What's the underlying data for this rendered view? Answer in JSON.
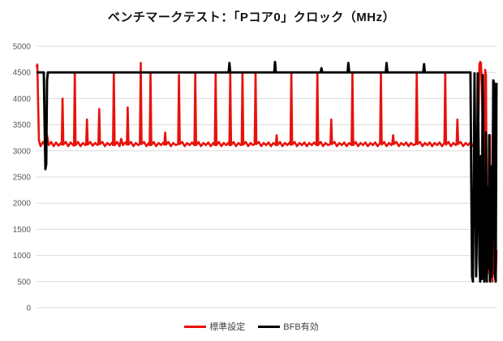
{
  "chart_data": {
    "type": "line",
    "title": "ベンチマークテスト：「Pコア0」クロック（MHz）",
    "xlabel": "",
    "ylabel": "",
    "x_axis_tick_labels": "none",
    "xlim": [
      0,
      565
    ],
    "ylim": [
      0,
      5000
    ],
    "yticks": [
      0,
      500,
      1000,
      1500,
      2000,
      2500,
      3000,
      3500,
      4000,
      4500,
      5000
    ],
    "grid": "horizontal",
    "gridline_color": "#d9d9d9",
    "tick_label_color": "#595959",
    "background_color": "#ffffff",
    "legend": {
      "position": "bottom-center",
      "entries": [
        {
          "label": "標準設定",
          "color": "#e8120c"
        },
        {
          "label": "BFB有効",
          "color": "#000000"
        }
      ]
    },
    "series": [
      {
        "name": "標準設定",
        "color": "#e8120c",
        "unit": "MHz",
        "points": [
          [
            0,
            4600
          ],
          [
            1,
            4650
          ],
          [
            2,
            3900
          ],
          [
            3,
            3200
          ],
          [
            5,
            3090
          ],
          [
            8,
            3170
          ],
          [
            11,
            3100
          ],
          [
            13,
            3300
          ],
          [
            15,
            3110
          ],
          [
            18,
            3170
          ],
          [
            21,
            3090
          ],
          [
            24,
            3160
          ],
          [
            27,
            3100
          ],
          [
            30,
            3150
          ],
          [
            31,
            3120
          ],
          [
            32,
            4000
          ],
          [
            33,
            3120
          ],
          [
            36,
            3170
          ],
          [
            39,
            3090
          ],
          [
            42,
            3160
          ],
          [
            45,
            3110
          ],
          [
            46,
            3100
          ],
          [
            47,
            4500
          ],
          [
            48,
            3110
          ],
          [
            51,
            3170
          ],
          [
            54,
            3090
          ],
          [
            57,
            3150
          ],
          [
            60,
            3110
          ],
          [
            61,
            3120
          ],
          [
            62,
            3600
          ],
          [
            63,
            3120
          ],
          [
            66,
            3170
          ],
          [
            69,
            3100
          ],
          [
            72,
            3150
          ],
          [
            75,
            3110
          ],
          [
            76,
            3130
          ],
          [
            77,
            3800
          ],
          [
            78,
            3130
          ],
          [
            81,
            3170
          ],
          [
            84,
            3090
          ],
          [
            87,
            3150
          ],
          [
            90,
            3110
          ],
          [
            93,
            3160
          ],
          [
            94,
            3110
          ],
          [
            95,
            4500
          ],
          [
            96,
            3110
          ],
          [
            99,
            3170
          ],
          [
            102,
            3090
          ],
          [
            104,
            3230
          ],
          [
            106,
            3110
          ],
          [
            109,
            3160
          ],
          [
            111,
            3120
          ],
          [
            112,
            3830
          ],
          [
            113,
            3120
          ],
          [
            116,
            3170
          ],
          [
            119,
            3090
          ],
          [
            122,
            3150
          ],
          [
            125,
            3110
          ],
          [
            127,
            3130
          ],
          [
            128,
            4680
          ],
          [
            129,
            3130
          ],
          [
            132,
            3170
          ],
          [
            135,
            3090
          ],
          [
            138,
            3150
          ],
          [
            139,
            3110
          ],
          [
            140,
            4500
          ],
          [
            141,
            3110
          ],
          [
            144,
            3170
          ],
          [
            147,
            3090
          ],
          [
            150,
            3150
          ],
          [
            153,
            3110
          ],
          [
            156,
            3160
          ],
          [
            157,
            3120
          ],
          [
            158,
            3350
          ],
          [
            159,
            3120
          ],
          [
            162,
            3170
          ],
          [
            165,
            3090
          ],
          [
            168,
            3150
          ],
          [
            171,
            3110
          ],
          [
            174,
            3130
          ],
          [
            175,
            4450
          ],
          [
            176,
            3130
          ],
          [
            179,
            3170
          ],
          [
            182,
            3090
          ],
          [
            185,
            3150
          ],
          [
            188,
            3110
          ],
          [
            191,
            3160
          ],
          [
            194,
            3110
          ],
          [
            195,
            4500
          ],
          [
            196,
            3110
          ],
          [
            199,
            3170
          ],
          [
            202,
            3090
          ],
          [
            205,
            3150
          ],
          [
            208,
            3110
          ],
          [
            211,
            3160
          ],
          [
            214,
            3090
          ],
          [
            217,
            3150
          ],
          [
            219,
            3110
          ],
          [
            220,
            4500
          ],
          [
            221,
            3110
          ],
          [
            224,
            3170
          ],
          [
            227,
            3090
          ],
          [
            230,
            3150
          ],
          [
            233,
            3110
          ],
          [
            236,
            3160
          ],
          [
            237,
            3110
          ],
          [
            238,
            4500
          ],
          [
            239,
            3110
          ],
          [
            242,
            3170
          ],
          [
            245,
            3090
          ],
          [
            248,
            3150
          ],
          [
            251,
            3110
          ],
          [
            252,
            3120
          ],
          [
            253,
            4500
          ],
          [
            254,
            3120
          ],
          [
            257,
            3170
          ],
          [
            260,
            3090
          ],
          [
            263,
            3150
          ],
          [
            266,
            3110
          ],
          [
            268,
            3130
          ],
          [
            269,
            4500
          ],
          [
            270,
            3130
          ],
          [
            273,
            3170
          ],
          [
            276,
            3090
          ],
          [
            279,
            3150
          ],
          [
            282,
            3110
          ],
          [
            285,
            3160
          ],
          [
            288,
            3090
          ],
          [
            291,
            3150
          ],
          [
            294,
            3110
          ],
          [
            295,
            3300
          ],
          [
            296,
            3110
          ],
          [
            299,
            3170
          ],
          [
            302,
            3090
          ],
          [
            305,
            3150
          ],
          [
            308,
            3110
          ],
          [
            311,
            3160
          ],
          [
            312,
            3120
          ],
          [
            313,
            4500
          ],
          [
            314,
            3120
          ],
          [
            317,
            3170
          ],
          [
            320,
            3090
          ],
          [
            323,
            3150
          ],
          [
            326,
            3110
          ],
          [
            329,
            3160
          ],
          [
            332,
            3090
          ],
          [
            335,
            3150
          ],
          [
            338,
            3110
          ],
          [
            341,
            3160
          ],
          [
            344,
            3110
          ],
          [
            345,
            4500
          ],
          [
            346,
            3110
          ],
          [
            349,
            3170
          ],
          [
            352,
            3090
          ],
          [
            355,
            3150
          ],
          [
            358,
            3110
          ],
          [
            361,
            3130
          ],
          [
            362,
            3600
          ],
          [
            363,
            3130
          ],
          [
            366,
            3170
          ],
          [
            369,
            3090
          ],
          [
            372,
            3150
          ],
          [
            375,
            3110
          ],
          [
            378,
            3160
          ],
          [
            381,
            3090
          ],
          [
            384,
            3150
          ],
          [
            387,
            3110
          ],
          [
            388,
            4500
          ],
          [
            389,
            3110
          ],
          [
            392,
            3170
          ],
          [
            395,
            3090
          ],
          [
            398,
            3150
          ],
          [
            401,
            3110
          ],
          [
            404,
            3160
          ],
          [
            407,
            3090
          ],
          [
            410,
            3150
          ],
          [
            413,
            3110
          ],
          [
            416,
            3160
          ],
          [
            419,
            3090
          ],
          [
            422,
            3150
          ],
          [
            423,
            4500
          ],
          [
            424,
            3120
          ],
          [
            427,
            3170
          ],
          [
            430,
            3090
          ],
          [
            433,
            3150
          ],
          [
            436,
            3110
          ],
          [
            437,
            3130
          ],
          [
            438,
            3300
          ],
          [
            439,
            3130
          ],
          [
            442,
            3170
          ],
          [
            445,
            3090
          ],
          [
            448,
            3150
          ],
          [
            451,
            3110
          ],
          [
            454,
            3160
          ],
          [
            457,
            3090
          ],
          [
            460,
            3150
          ],
          [
            463,
            3110
          ],
          [
            466,
            3130
          ],
          [
            467,
            4500
          ],
          [
            468,
            3130
          ],
          [
            471,
            3170
          ],
          [
            474,
            3090
          ],
          [
            477,
            3150
          ],
          [
            480,
            3110
          ],
          [
            483,
            3160
          ],
          [
            486,
            3090
          ],
          [
            489,
            3150
          ],
          [
            492,
            3110
          ],
          [
            495,
            3160
          ],
          [
            498,
            3090
          ],
          [
            501,
            3150
          ],
          [
            502,
            4500
          ],
          [
            503,
            3120
          ],
          [
            506,
            3170
          ],
          [
            509,
            3090
          ],
          [
            512,
            3150
          ],
          [
            515,
            3110
          ],
          [
            516,
            3130
          ],
          [
            517,
            3600
          ],
          [
            518,
            3130
          ],
          [
            521,
            3170
          ],
          [
            524,
            3090
          ],
          [
            527,
            3150
          ],
          [
            530,
            3110
          ],
          [
            533,
            3160
          ],
          [
            536,
            3090
          ],
          [
            537,
            3130
          ],
          [
            538,
            3300
          ],
          [
            539,
            3130
          ],
          [
            541,
            3150
          ],
          [
            542,
            3200
          ],
          [
            543,
            3700
          ],
          [
            544,
            4650
          ],
          [
            545,
            4700
          ],
          [
            546,
            4680
          ],
          [
            547,
            4250
          ],
          [
            548,
            3600
          ],
          [
            549,
            2000
          ],
          [
            550,
            700
          ],
          [
            551,
            4550
          ],
          [
            552,
            4450
          ],
          [
            553,
            1400
          ],
          [
            554,
            650
          ],
          [
            555,
            2000
          ],
          [
            556,
            850
          ],
          [
            557,
            3300
          ],
          [
            558,
            550
          ],
          [
            559,
            1800
          ],
          [
            560,
            500
          ],
          [
            561,
            2400
          ],
          [
            562,
            650
          ],
          [
            563,
            1900
          ],
          [
            564,
            500
          ],
          [
            565,
            1100
          ]
        ]
      },
      {
        "name": "BFB有効",
        "color": "#000000",
        "unit": "MHz",
        "points": [
          [
            0,
            4500
          ],
          [
            9,
            4500
          ],
          [
            10,
            3500
          ],
          [
            11,
            2650
          ],
          [
            12,
            2750
          ],
          [
            13,
            4350
          ],
          [
            14,
            4500
          ],
          [
            236,
            4500
          ],
          [
            237,
            4680
          ],
          [
            238,
            4500
          ],
          [
            292,
            4500
          ],
          [
            293,
            4700
          ],
          [
            294,
            4500
          ],
          [
            349,
            4500
          ],
          [
            350,
            4580
          ],
          [
            351,
            4500
          ],
          [
            382,
            4500
          ],
          [
            383,
            4680
          ],
          [
            384,
            4500
          ],
          [
            429,
            4500
          ],
          [
            430,
            4680
          ],
          [
            431,
            4500
          ],
          [
            475,
            4500
          ],
          [
            476,
            4660
          ],
          [
            477,
            4500
          ],
          [
            533,
            4500
          ],
          [
            534,
            2400
          ],
          [
            535,
            600
          ],
          [
            536,
            500
          ],
          [
            537,
            2200
          ],
          [
            538,
            4480
          ],
          [
            539,
            2800
          ],
          [
            540,
            600
          ],
          [
            541,
            1600
          ],
          [
            542,
            4480
          ],
          [
            543,
            3100
          ],
          [
            544,
            900
          ],
          [
            545,
            500
          ],
          [
            546,
            2900
          ],
          [
            547,
            550
          ],
          [
            548,
            4450
          ],
          [
            549,
            1900
          ],
          [
            550,
            500
          ],
          [
            551,
            1300
          ],
          [
            552,
            3350
          ],
          [
            553,
            500
          ],
          [
            554,
            2300
          ],
          [
            555,
            750
          ],
          [
            556,
            3300
          ],
          [
            557,
            500
          ],
          [
            558,
            2700
          ],
          [
            559,
            600
          ],
          [
            560,
            1500
          ],
          [
            561,
            4350
          ],
          [
            562,
            4300
          ],
          [
            563,
            650
          ],
          [
            564,
            500
          ],
          [
            565,
            4300
          ]
        ]
      }
    ]
  }
}
